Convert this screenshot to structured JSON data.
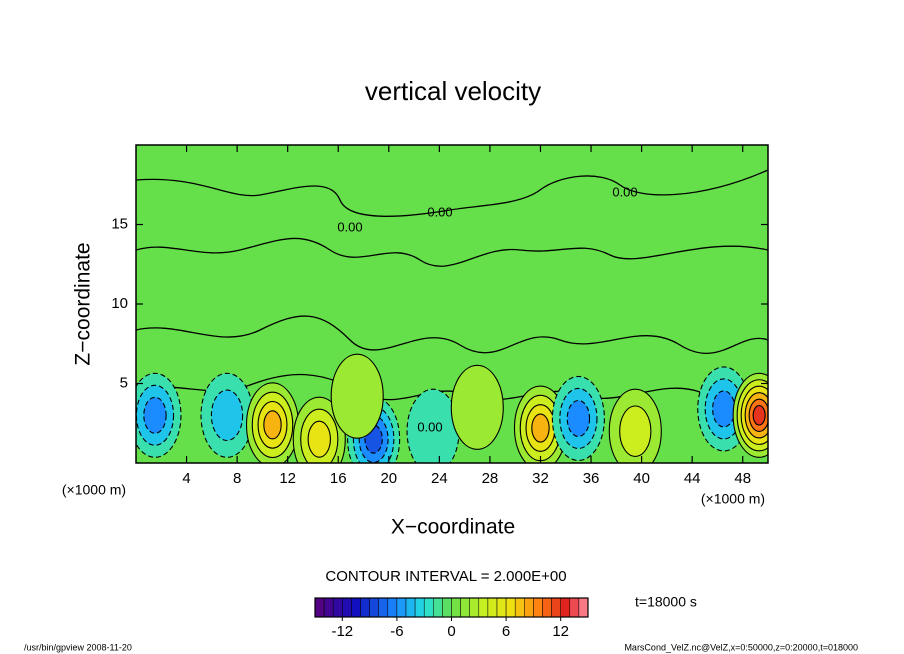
{
  "chart_data": {
    "type": "contour",
    "title": "vertical velocity",
    "x_label": "X−coordinate",
    "y_label": "Z−coordinate",
    "x_unit": "(×1000 m)",
    "xlim": [
      0,
      50
    ],
    "xticks": [
      4,
      8,
      12,
      16,
      20,
      24,
      28,
      32,
      36,
      40,
      44,
      48
    ],
    "ylim": [
      0,
      20
    ],
    "yticks": [
      5,
      10,
      15
    ],
    "contour_label": "0.00",
    "contour_interval": "CONTOUR INTERVAL = 2.000E+00",
    "time_label": "t=18000 s",
    "clim": [
      -15,
      15
    ],
    "cticks": [
      -12,
      -6,
      0,
      6,
      12
    ],
    "cells": [
      {
        "x": 1.5,
        "z": 3,
        "value": -6
      },
      {
        "x": 7.2,
        "z": 3,
        "value": -4
      },
      {
        "x": 10.8,
        "z": 2.4,
        "value": 8
      },
      {
        "x": 14.5,
        "z": 1.5,
        "value": 6
      },
      {
        "x": 18.8,
        "z": 1.5,
        "value": -8
      },
      {
        "x": 23.5,
        "z": 2,
        "value": -2
      },
      {
        "x": 32,
        "z": 2.2,
        "value": 8
      },
      {
        "x": 35,
        "z": 2.8,
        "value": -6
      },
      {
        "x": 39.5,
        "z": 2,
        "value": 4
      },
      {
        "x": 46.5,
        "z": 3.4,
        "value": -6
      },
      {
        "x": 49.3,
        "z": 3,
        "value": 12
      },
      {
        "x": 17.5,
        "z": 4.2,
        "value": 2
      },
      {
        "x": 27,
        "z": 3.5,
        "value": 2
      }
    ],
    "footer_left": "/usr/bin/gpview  2008-11-20",
    "footer_right": "MarsCond_VelZ.nc@VelZ,x=0:50000,z=0:20000,t=018000"
  }
}
